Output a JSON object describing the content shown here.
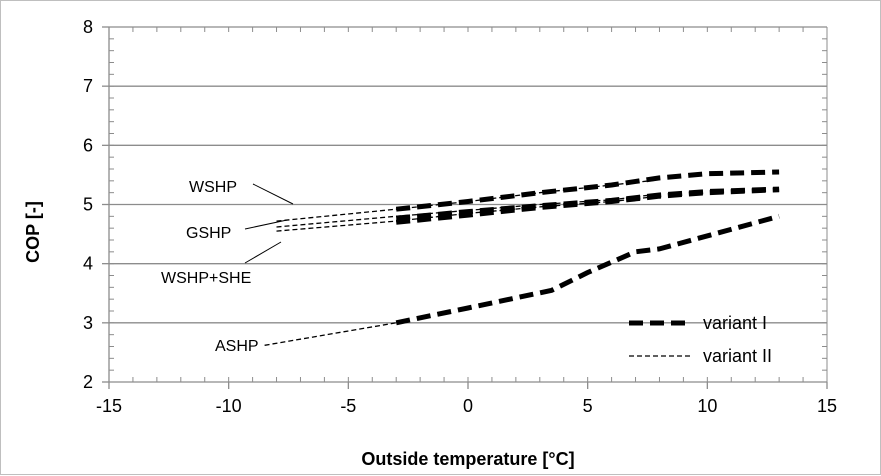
{
  "chart_data": {
    "type": "line",
    "title": "",
    "xlabel": "Outside temperature [°C]",
    "ylabel": "COP [-]",
    "xlim": [
      -15,
      15
    ],
    "ylim": [
      2,
      8
    ],
    "x_ticks": [
      "-15",
      "-10",
      "-5",
      "0",
      "5",
      "10",
      "15"
    ],
    "y_ticks": [
      "2",
      "3",
      "4",
      "5",
      "6",
      "7",
      "8"
    ],
    "grid": "horizontal",
    "legend": {
      "placement": "bottom-right",
      "entries": [
        {
          "label": "variant I",
          "style": "thick-dashed"
        },
        {
          "label": "variant II",
          "style": "thin-dashed"
        }
      ]
    },
    "series": [
      {
        "name": "WSHP",
        "variant_I": {
          "x": [
            -3,
            0,
            3,
            6,
            8,
            10,
            13
          ],
          "y": [
            4.92,
            5.05,
            5.2,
            5.33,
            5.45,
            5.52,
            5.55
          ]
        },
        "variant_II": {
          "x": [
            -8,
            -3,
            0,
            3,
            6,
            8
          ],
          "y": [
            4.72,
            4.92,
            5.05,
            5.2,
            5.33,
            5.42
          ]
        }
      },
      {
        "name": "GSHP",
        "variant_I": {
          "x": [
            -3,
            0,
            3,
            6,
            8,
            10,
            13
          ],
          "y": [
            4.77,
            4.88,
            4.98,
            5.07,
            5.16,
            5.22,
            5.26
          ]
        },
        "variant_II": {
          "x": [
            -8,
            -3,
            0,
            3,
            6,
            8
          ],
          "y": [
            4.62,
            4.8,
            4.9,
            5.0,
            5.08,
            5.18
          ]
        }
      },
      {
        "name": "WSHP+SHE",
        "variant_I": {
          "x": [
            -3,
            0,
            3,
            6,
            8,
            10,
            13
          ],
          "y": [
            4.7,
            4.82,
            4.95,
            5.05,
            5.14,
            5.2,
            5.25
          ]
        },
        "variant_II": {
          "x": [
            -8,
            -3,
            0,
            3,
            6,
            8
          ],
          "y": [
            4.55,
            4.72,
            4.85,
            4.96,
            5.05,
            5.14
          ]
        }
      },
      {
        "name": "ASHP",
        "variant_I": {
          "x": [
            -3,
            0,
            3.5,
            5,
            7,
            8,
            13
          ],
          "y": [
            3.0,
            3.25,
            3.55,
            3.85,
            4.2,
            4.25,
            4.8
          ]
        },
        "variant_II": {
          "x": [
            -8.5,
            -3
          ],
          "y": [
            2.62,
            3.0
          ]
        }
      }
    ],
    "annotations": [
      {
        "label": "WSHP",
        "series": "WSHP"
      },
      {
        "label": "GSHP",
        "series": "GSHP"
      },
      {
        "label": "WSHP+SHE",
        "series": "WSHP+SHE"
      },
      {
        "label": "ASHP",
        "series": "ASHP"
      }
    ]
  },
  "colors": {
    "line": "#000000",
    "grid": "#8c8c8c",
    "axis": "#8c8c8c",
    "frame": "#bfbfbf"
  }
}
